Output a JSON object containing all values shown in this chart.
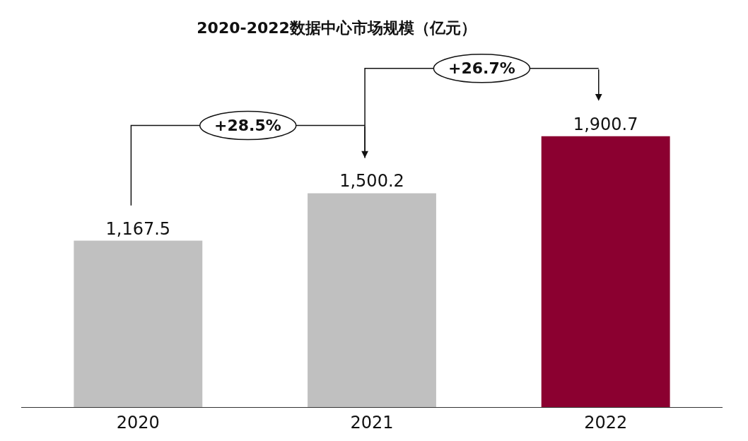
{
  "chart_data": {
    "type": "bar",
    "title": "2020-2022数据中心市场规模（亿元）",
    "categories": [
      "2020",
      "2021",
      "2022"
    ],
    "values": [
      1167.5,
      1500.2,
      1900.7
    ],
    "colors": [
      "#c0c0c0",
      "#c0c0c0",
      "#8b0030"
    ],
    "value_labels": [
      "1,167.5",
      "1,500.2",
      "1,900.7"
    ],
    "annotations": [
      "+28.5%",
      "+26.7%"
    ]
  }
}
